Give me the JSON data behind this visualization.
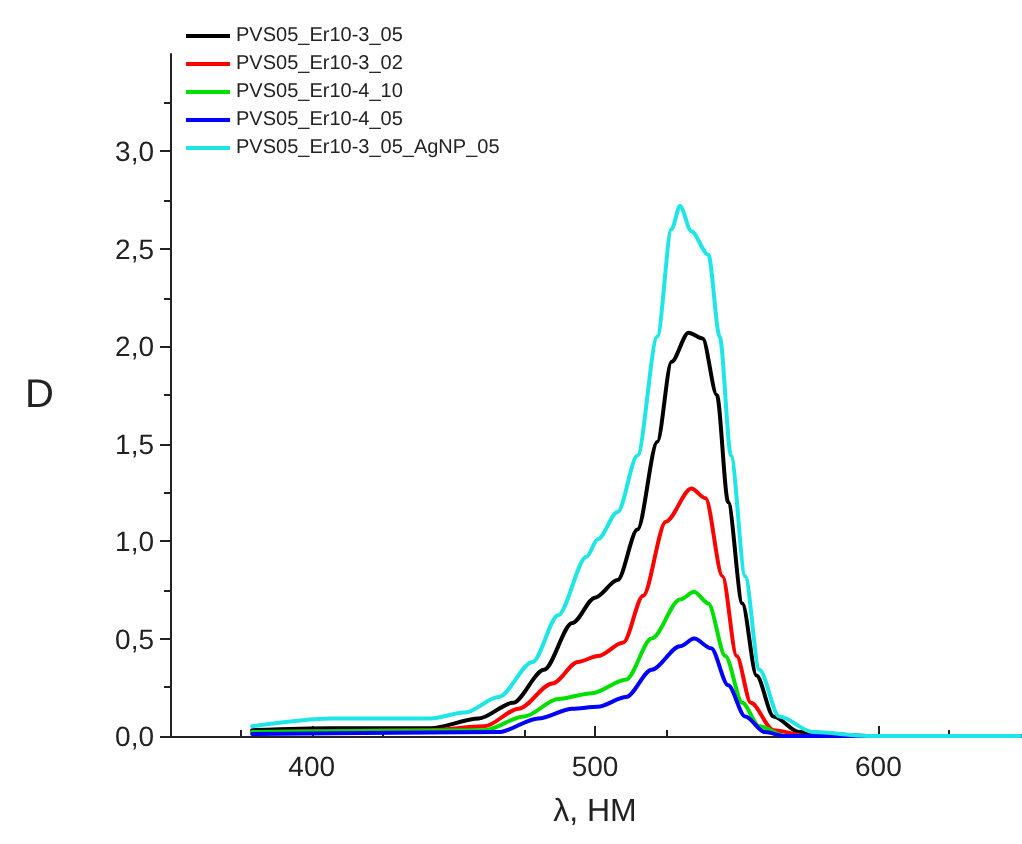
{
  "chart_data": {
    "type": "line",
    "xlabel": "λ, НМ",
    "ylabel": "D",
    "xlim": [
      350,
      650
    ],
    "xticks": [
      400,
      500,
      600
    ],
    "ylim": [
      0,
      3.5
    ],
    "yticks": [
      {
        "value": 0,
        "label": "0,0"
      },
      {
        "value": 0.5,
        "label": "0,5"
      },
      {
        "value": 1,
        "label": "1,0"
      },
      {
        "value": 1.5,
        "label": "1,5"
      },
      {
        "value": 2,
        "label": "2,0"
      },
      {
        "value": 2.5,
        "label": "2,5"
      },
      {
        "value": 3,
        "label": "3,0"
      }
    ],
    "grid": false,
    "legend": "top left",
    "marker": "none",
    "line_style": "solid",
    "series": [
      {
        "name": "PVS05_Er10-3_05",
        "color": "#000000",
        "x": [
          379,
          407,
          442,
          459,
          471,
          482,
          492,
          500,
          508,
          515,
          522,
          527,
          533,
          538,
          543,
          547,
          552,
          557,
          563,
          572,
          596,
          650
        ],
        "values": [
          0.03,
          0.04,
          0.04,
          0.09,
          0.17,
          0.34,
          0.58,
          0.71,
          0.8,
          1.06,
          1.51,
          1.92,
          2.07,
          2.04,
          1.75,
          1.2,
          0.68,
          0.31,
          0.1,
          0.02,
          0,
          0
        ]
      },
      {
        "name": "PVS05_Er10-3_02",
        "color": "#ff0000",
        "x": [
          379,
          442,
          461,
          473,
          485,
          494,
          501,
          510,
          517,
          525,
          534,
          539,
          545,
          550,
          555,
          563,
          575,
          650
        ],
        "values": [
          0.02,
          0.03,
          0.05,
          0.14,
          0.27,
          0.38,
          0.41,
          0.48,
          0.72,
          1.1,
          1.27,
          1.22,
          0.82,
          0.41,
          0.17,
          0.03,
          0,
          0
        ]
      },
      {
        "name": "PVS05_Er10-4_10",
        "color": "#00e000",
        "x": [
          379,
          461,
          475,
          487,
          499,
          511,
          520,
          530,
          535,
          540,
          546,
          552,
          558,
          567,
          650
        ],
        "values": [
          0.02,
          0.03,
          0.1,
          0.19,
          0.22,
          0.29,
          0.5,
          0.7,
          0.74,
          0.68,
          0.41,
          0.17,
          0.05,
          0,
          0
        ]
      },
      {
        "name": "PVS05_Er10-4_05",
        "color": "#0000ff",
        "x": [
          379,
          466,
          480,
          492,
          501,
          511,
          520,
          530,
          535,
          541,
          547,
          553,
          560,
          567,
          650
        ],
        "values": [
          0.01,
          0.02,
          0.09,
          0.14,
          0.15,
          0.2,
          0.34,
          0.46,
          0.5,
          0.45,
          0.26,
          0.1,
          0.02,
          0,
          0
        ]
      },
      {
        "name": "PVS05_Er10-3_05_AgNP_05",
        "color": "#1ee6e6",
        "x": [
          379,
          407,
          442,
          454,
          466,
          478,
          487,
          497,
          501,
          508,
          515,
          522,
          527,
          530,
          534,
          540,
          544,
          548,
          553,
          558,
          565,
          577,
          596,
          650
        ],
        "values": [
          0.05,
          0.09,
          0.09,
          0.12,
          0.2,
          0.38,
          0.62,
          0.92,
          1.01,
          1.15,
          1.44,
          2.05,
          2.6,
          2.72,
          2.59,
          2.47,
          2.05,
          1.44,
          0.82,
          0.34,
          0.1,
          0.02,
          0,
          0
        ]
      }
    ]
  }
}
